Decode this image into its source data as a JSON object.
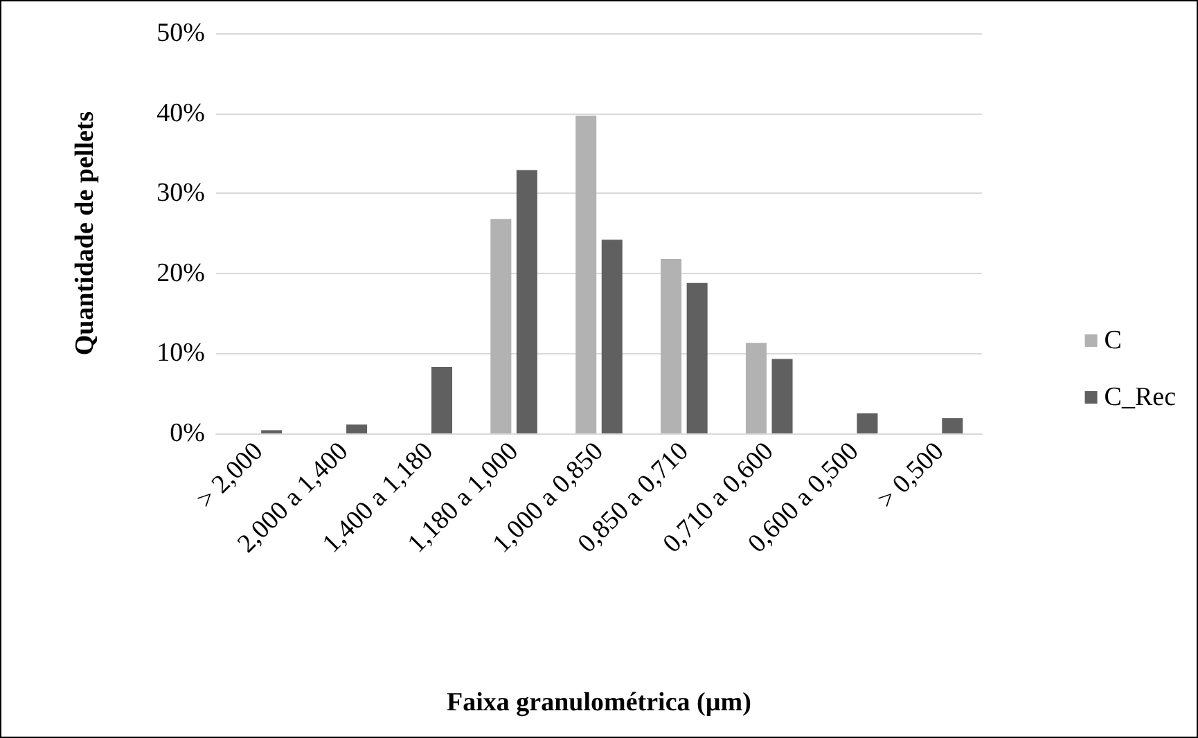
{
  "chart_data": {
    "type": "bar",
    "xlabel": "Faixa granulométrica (µm)",
    "ylabel": "Quantidade de pellets",
    "categories": [
      "> 2,000",
      "2,000 a 1,400",
      "1,400 a 1,180",
      "1,180 a 1,000",
      "1,000 a 0,850",
      "0,850 a 0,710",
      "0,710 a 0,600",
      "0,600 a 0,500",
      "> 0,500"
    ],
    "series": [
      {
        "name": "C",
        "color": "#b2b2b2",
        "values": [
          0,
          0,
          0,
          26.8,
          39.7,
          21.8,
          11.3,
          0,
          0
        ]
      },
      {
        "name": "C_Rec",
        "color": "#606060",
        "values": [
          0.4,
          1.1,
          8.3,
          32.9,
          24.2,
          18.8,
          9.3,
          2.5,
          1.9
        ]
      }
    ],
    "ylim": [
      0,
      50
    ],
    "yticks": [
      {
        "value": 0,
        "label": "0%"
      },
      {
        "value": 10,
        "label": "10%"
      },
      {
        "value": 20,
        "label": "20%"
      },
      {
        "value": 30,
        "label": "30%"
      },
      {
        "value": 40,
        "label": "40%"
      },
      {
        "value": 50,
        "label": "50%"
      }
    ],
    "grid": "y",
    "legend": "right"
  }
}
